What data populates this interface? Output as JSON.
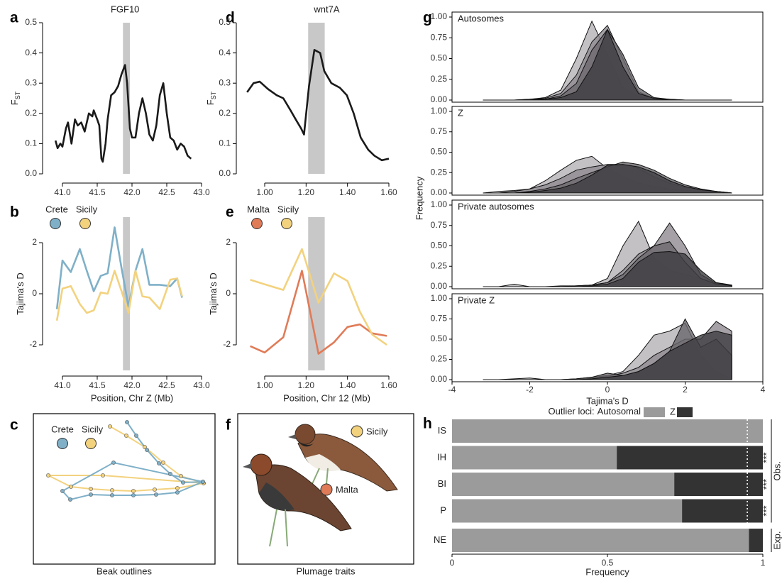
{
  "chart_data": [
    {
      "panel": "a",
      "type": "line",
      "title": "FGF10",
      "ylabel": "F",
      "ylabel_subscript": "ST",
      "x": [
        40.9,
        40.93,
        40.97,
        41.0,
        41.05,
        41.08,
        41.13,
        41.18,
        41.22,
        41.27,
        41.32,
        41.38,
        41.43,
        41.45,
        41.5,
        41.53,
        41.56,
        41.58,
        41.62,
        41.65,
        41.7,
        41.75,
        41.8,
        41.85,
        41.9,
        41.93,
        41.97,
        42.0,
        42.05,
        42.1,
        42.15,
        42.2,
        42.25,
        42.3,
        42.35,
        42.4,
        42.45,
        42.5,
        42.55,
        42.6,
        42.65,
        42.7,
        42.75,
        42.8,
        42.85
      ],
      "values": [
        0.11,
        0.085,
        0.1,
        0.09,
        0.15,
        0.17,
        0.1,
        0.18,
        0.16,
        0.17,
        0.14,
        0.2,
        0.19,
        0.21,
        0.18,
        0.16,
        0.05,
        0.04,
        0.1,
        0.18,
        0.26,
        0.27,
        0.29,
        0.33,
        0.36,
        0.3,
        0.15,
        0.12,
        0.12,
        0.2,
        0.25,
        0.2,
        0.13,
        0.11,
        0.16,
        0.26,
        0.3,
        0.2,
        0.12,
        0.11,
        0.08,
        0.1,
        0.09,
        0.06,
        0.05
      ],
      "color": "#1a1a1a",
      "highlight": [
        41.87,
        41.97
      ],
      "highlight_color": "#c8c8c8",
      "xlim": [
        40.8,
        43.0
      ],
      "xticks": [
        {
          "value": 41,
          "label": "41.0"
        },
        41.5,
        {
          "value": 42,
          "label": "42.0"
        },
        42.5,
        {
          "value": 43,
          "label": "43.0"
        }
      ],
      "ylim": [
        0,
        0.5
      ],
      "yticks": [
        {
          "value": 0,
          "label": "0.0"
        },
        0.1,
        0.2,
        0.3,
        0.4,
        0.5
      ]
    },
    {
      "panel": "b",
      "type": "line",
      "ylabel": "Tajima's D",
      "xlabel": "Position, Chr Z (Mb)",
      "x": [
        40.92,
        41.0,
        41.12,
        41.25,
        41.35,
        41.45,
        41.55,
        41.65,
        41.75,
        41.85,
        41.95,
        42.05,
        42.15,
        42.25,
        42.4,
        42.55,
        42.65,
        42.72
      ],
      "series": [
        {
          "name": "Crete",
          "color": "#7fb0c8",
          "values": [
            -0.6,
            1.3,
            0.85,
            1.75,
            0.9,
            0.1,
            0.7,
            0.8,
            2.6,
            1.0,
            -0.5,
            0.9,
            1.75,
            0.35,
            0.35,
            0.3,
            0.6,
            -0.15
          ]
        },
        {
          "name": "Sicily",
          "color": "#f3d27e",
          "values": [
            -1.05,
            0.2,
            0.3,
            -0.4,
            -0.75,
            -0.65,
            0.05,
            0.0,
            0.9,
            0.1,
            -0.75,
            0.9,
            -0.1,
            -0.15,
            -0.6,
            0.55,
            0.6,
            -0.1
          ]
        }
      ],
      "highlight": [
        41.87,
        41.97
      ],
      "highlight_color": "#c8c8c8",
      "xlim": [
        40.8,
        43.0
      ],
      "xticks": [
        {
          "value": 41,
          "label": "41.0"
        },
        41.5,
        {
          "value": 42,
          "label": "42.0"
        },
        42.5,
        {
          "value": 43,
          "label": "43.0"
        }
      ],
      "ylim": [
        -3,
        3
      ],
      "yticks": [
        -2,
        0,
        2
      ]
    },
    {
      "panel": "d",
      "type": "line",
      "title": "wnt7A",
      "ylabel": "F",
      "ylabel_subscript": "ST",
      "x": [
        0.915,
        0.946,
        0.976,
        1.017,
        1.058,
        1.09,
        1.125,
        1.15,
        1.176,
        1.19,
        1.214,
        1.24,
        1.268,
        1.288,
        1.322,
        1.363,
        1.397,
        1.43,
        1.464,
        1.5,
        1.53,
        1.566,
        1.6
      ],
      "values": [
        0.27,
        0.3,
        0.305,
        0.28,
        0.26,
        0.25,
        0.21,
        0.18,
        0.15,
        0.13,
        0.29,
        0.41,
        0.4,
        0.34,
        0.3,
        0.285,
        0.26,
        0.2,
        0.12,
        0.08,
        0.06,
        0.045,
        0.05
      ],
      "color": "#1a1a1a",
      "highlight": [
        1.21,
        1.29
      ],
      "highlight_color": "#c8c8c8",
      "xlim": [
        0.88,
        1.72
      ],
      "xticks": [
        {
          "value": 1,
          "label": "1.00"
        },
        {
          "value": 1.2,
          "label": "1.20"
        },
        {
          "value": 1.4,
          "label": "1.40"
        },
        {
          "value": 1.6,
          "label": "1.60"
        }
      ],
      "ylim": [
        0,
        0.5
      ],
      "yticks": [
        {
          "value": 0,
          "label": "0.0"
        },
        0.1,
        0.2,
        0.3,
        0.4,
        0.5
      ]
    },
    {
      "panel": "e",
      "type": "line",
      "ylabel": "Tajima's D",
      "xlabel": "Position, Chr 12 (Mb)",
      "x": [
        0.93,
        1.0,
        1.09,
        1.18,
        1.26,
        1.335,
        1.4,
        1.46,
        1.52,
        1.59
      ],
      "series": [
        {
          "name": "Malta",
          "color": "#e07b58",
          "values": [
            -2.05,
            -2.3,
            -1.7,
            0.9,
            -2.35,
            -1.9,
            -1.3,
            -1.2,
            -1.55,
            -1.65
          ]
        },
        {
          "name": "Sicily",
          "color": "#f3d27e",
          "values": [
            0.55,
            0.37,
            0.15,
            1.75,
            -0.35,
            0.8,
            0.5,
            -0.7,
            -1.6,
            -2.0
          ]
        }
      ],
      "highlight": [
        1.21,
        1.29
      ],
      "highlight_color": "#c8c8c8",
      "xlim": [
        0.88,
        1.72
      ],
      "xticks": [
        {
          "value": 1,
          "label": "1.00"
        },
        {
          "value": 1.2,
          "label": "1.20"
        },
        {
          "value": 1.4,
          "label": "1.40"
        },
        {
          "value": 1.6,
          "label": "1.60"
        }
      ],
      "ylim": [
        -3,
        3
      ],
      "yticks": [
        -2,
        0,
        2
      ]
    },
    {
      "panel": "g",
      "type": "density",
      "xlabel": "Tajima's D",
      "ylabel": "Frequency",
      "x": [
        -3.2,
        -2.8,
        -2.4,
        -2.0,
        -1.6,
        -1.2,
        -0.8,
        -0.4,
        0,
        0.4,
        0.8,
        1.2,
        1.6,
        2.0,
        2.4,
        2.8,
        3.2
      ],
      "xlim": [
        -4,
        4
      ],
      "xticks": [
        -4,
        -2,
        0,
        2,
        4
      ],
      "ylim": [
        0,
        1
      ],
      "yticks": [
        {
          "value": 0,
          "label": "0.00"
        },
        0.25,
        {
          "value": 0.5,
          "label": "0.50"
        },
        0.75,
        {
          "value": 1,
          "label": "1.00"
        }
      ],
      "facets": [
        {
          "title": "Autosomes",
          "series": [
            {
              "color": "#b5b1b7",
              "values": [
                0,
                0,
                0,
                0.01,
                0.03,
                0.12,
                0.5,
                0.95,
                0.55,
                0.15,
                0.04,
                0.01,
                0,
                0,
                0,
                0,
                0
              ]
            },
            {
              "color": "#8e8a90",
              "values": [
                0,
                0,
                0,
                0.01,
                0.02,
                0.08,
                0.3,
                0.7,
                0.9,
                0.5,
                0.1,
                0.02,
                0.01,
                0,
                0,
                0,
                0
              ]
            },
            {
              "color": "#6b686d",
              "values": [
                0,
                0,
                0,
                0,
                0.01,
                0.05,
                0.2,
                0.6,
                0.85,
                0.55,
                0.15,
                0.03,
                0.01,
                0,
                0,
                0,
                0
              ]
            },
            {
              "color": "#3f3d41",
              "values": [
                0,
                0,
                0,
                0,
                0.01,
                0.03,
                0.1,
                0.4,
                0.85,
                0.4,
                0.08,
                0.02,
                0,
                0,
                0,
                0,
                0
              ]
            }
          ]
        },
        {
          "title": "Z",
          "series": [
            {
              "color": "#b5b1b7",
              "values": [
                0,
                0.02,
                0.03,
                0.05,
                0.15,
                0.28,
                0.4,
                0.45,
                0.3,
                0.2,
                0.12,
                0.08,
                0.05,
                0.03,
                0.02,
                0.01,
                0
              ]
            },
            {
              "color": "#8e8a90",
              "values": [
                0,
                0,
                0.02,
                0.05,
                0.1,
                0.18,
                0.28,
                0.32,
                0.35,
                0.35,
                0.3,
                0.2,
                0.12,
                0.07,
                0.04,
                0.02,
                0
              ]
            },
            {
              "color": "#6b686d",
              "values": [
                0,
                0,
                0,
                0.02,
                0.05,
                0.1,
                0.18,
                0.25,
                0.32,
                0.38,
                0.35,
                0.28,
                0.18,
                0.1,
                0.05,
                0.02,
                0
              ]
            },
            {
              "color": "#3f3d41",
              "values": [
                0,
                0,
                0,
                0.01,
                0.03,
                0.06,
                0.12,
                0.22,
                0.34,
                0.35,
                0.32,
                0.25,
                0.15,
                0.08,
                0.04,
                0.02,
                0
              ]
            }
          ]
        },
        {
          "title": "Private autosomes",
          "series": [
            {
              "color": "#b5b1b7",
              "values": [
                0,
                0,
                0.03,
                0,
                0,
                0.01,
                0.01,
                0.02,
                0.1,
                0.5,
                0.8,
                0.35,
                0.2,
                0.15,
                0.1,
                0.05,
                0.02
              ]
            },
            {
              "color": "#8e8a90",
              "values": [
                0,
                0,
                0,
                0,
                0,
                0,
                0.01,
                0.02,
                0.05,
                0.2,
                0.4,
                0.5,
                0.78,
                0.5,
                0.15,
                0.04,
                0.01
              ]
            },
            {
              "color": "#6b686d",
              "values": [
                0,
                0,
                0,
                0,
                0,
                0,
                0.01,
                0.02,
                0.05,
                0.15,
                0.35,
                0.5,
                0.55,
                0.3,
                0.1,
                0.03,
                0.01
              ]
            },
            {
              "color": "#3f3d41",
              "values": [
                0,
                0,
                0,
                0,
                0,
                0,
                0,
                0.01,
                0.03,
                0.1,
                0.3,
                0.42,
                0.43,
                0.4,
                0.2,
                0.05,
                0.01
              ]
            }
          ]
        },
        {
          "title": "Private Z",
          "series": [
            {
              "color": "#b5b1b7",
              "values": [
                0,
                0,
                0.01,
                0.02,
                0,
                0,
                0.01,
                0.03,
                0.05,
                0.1,
                0.3,
                0.55,
                0.6,
                0.7,
                0.3,
                0.1,
                0
              ]
            },
            {
              "color": "#8e8a90",
              "values": [
                0,
                0,
                0,
                0,
                0,
                0,
                0,
                0.02,
                0.04,
                0.08,
                0.15,
                0.3,
                0.4,
                0.5,
                0.5,
                0.72,
                0.6
              ]
            },
            {
              "color": "#6b686d",
              "values": [
                0,
                0,
                0,
                0,
                0,
                0,
                0.01,
                0.03,
                0.08,
                0.05,
                0.1,
                0.2,
                0.35,
                0.75,
                0.4,
                0.5,
                0.3
              ]
            },
            {
              "color": "#3f3d41",
              "values": [
                0,
                0,
                0,
                0,
                0,
                0,
                0,
                0.01,
                0.03,
                0.05,
                0.1,
                0.2,
                0.35,
                0.45,
                0.55,
                0.6,
                0.55
              ]
            }
          ]
        }
      ]
    },
    {
      "panel": "h",
      "type": "hbar_stacked",
      "legend_title": "Outlier loci:",
      "xlabel": "Frequency",
      "categories": [
        "IS",
        "IH",
        "BI",
        "P",
        "NE"
      ],
      "series": [
        {
          "name": "Autosomal",
          "color": "#9b9b9b",
          "values": [
            1,
            0.53,
            0.715,
            0.74,
            0.955
          ]
        },
        {
          "name": "Z",
          "color": "#333333",
          "values": [
            0,
            0.47,
            0.285,
            0.26,
            0.045
          ]
        }
      ],
      "xlim": [
        0,
        1
      ],
      "xticks": [
        0,
        0.5,
        1
      ],
      "reference_line": 0.95,
      "annotations": [
        {
          "category": "IH",
          "text": "***"
        },
        {
          "category": "BI",
          "text": "***"
        },
        {
          "category": "P",
          "text": "***"
        }
      ],
      "groups": [
        {
          "label": "Obs.",
          "categories": [
            "IS",
            "IH",
            "BI",
            "P"
          ]
        },
        {
          "label": "Exp.",
          "categories": [
            "NE"
          ]
        }
      ]
    }
  ],
  "figures": [
    {
      "panel": "c",
      "caption": "Beak outlines",
      "legend": [
        {
          "name": "Crete",
          "color": "#7fb0c8"
        },
        {
          "name": "Sicily",
          "color": "#f3d27e"
        }
      ]
    },
    {
      "panel": "f",
      "caption": "Plumage traits",
      "legend": [
        {
          "name": "Sicily",
          "color": "#f3d27e"
        },
        {
          "name": "Malta",
          "color": "#e07b58"
        }
      ]
    }
  ]
}
